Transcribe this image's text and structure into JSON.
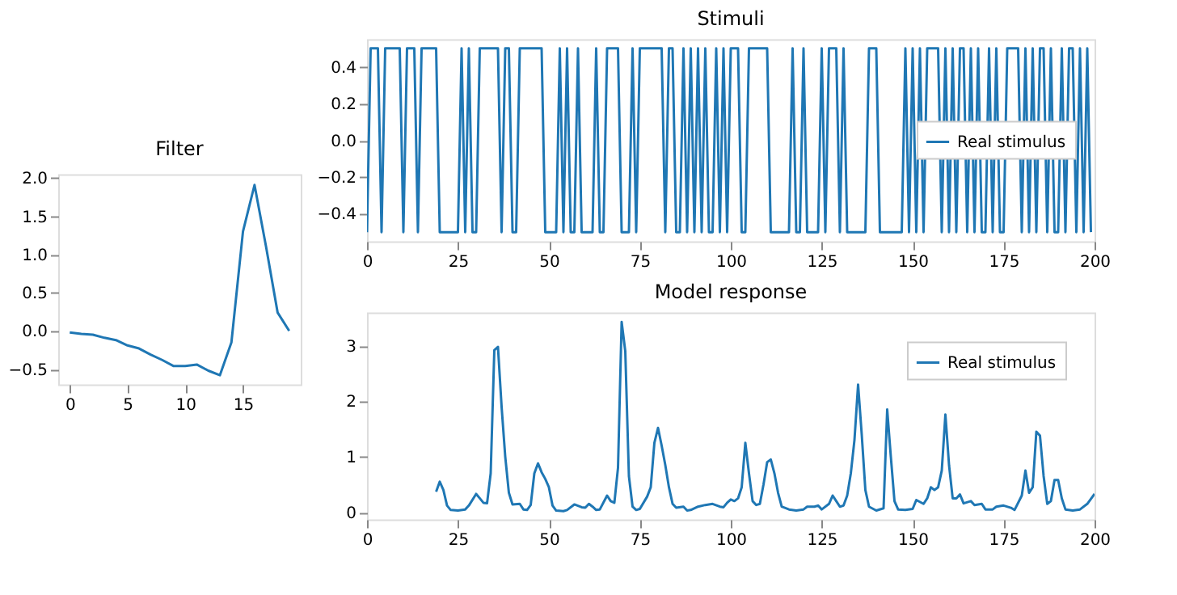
{
  "chart_data": [
    {
      "type": "line",
      "title": "Filter",
      "x": [
        0,
        1,
        2,
        3,
        4,
        5,
        6,
        7,
        8,
        9,
        10,
        11,
        12,
        13,
        14,
        15,
        16,
        17,
        18,
        19
      ],
      "series": [
        {
          "color": "#1f77b4",
          "values": [
            -0.02,
            -0.04,
            -0.05,
            -0.09,
            -0.12,
            -0.19,
            -0.23,
            -0.31,
            -0.38,
            -0.46,
            -0.46,
            -0.44,
            -0.52,
            -0.58,
            -0.15,
            1.3,
            1.91,
            1.1,
            0.24,
            0.0
          ]
        }
      ],
      "xlim": [
        -1,
        20
      ],
      "xticks": [
        0,
        5,
        10,
        15
      ],
      "ylim": [
        -0.7,
        2.05
      ],
      "yticks": [
        -0.5,
        {
          "value": 0,
          "label": "0.0"
        },
        0.5,
        {
          "value": 1,
          "label": "1.0"
        },
        1.5,
        {
          "value": 2,
          "label": "2.0"
        }
      ]
    },
    {
      "type": "line",
      "title": "Stimuli",
      "x": [
        0,
        1,
        2,
        3,
        4,
        5,
        6,
        7,
        8,
        9,
        10,
        11,
        12,
        13,
        14,
        15,
        16,
        17,
        18,
        19,
        20,
        21,
        22,
        23,
        24,
        25,
        26,
        27,
        28,
        29,
        30,
        31,
        32,
        33,
        34,
        35,
        36,
        37,
        38,
        39,
        40,
        41,
        42,
        43,
        44,
        45,
        46,
        47,
        48,
        49,
        50,
        51,
        52,
        53,
        54,
        55,
        56,
        57,
        58,
        59,
        60,
        61,
        62,
        63,
        64,
        65,
        66,
        67,
        68,
        69,
        70,
        71,
        72,
        73,
        74,
        75,
        76,
        77,
        78,
        79,
        80,
        81,
        82,
        83,
        84,
        85,
        86,
        87,
        88,
        89,
        90,
        91,
        92,
        93,
        94,
        95,
        96,
        97,
        98,
        99,
        100,
        101,
        102,
        103,
        104,
        105,
        106,
        107,
        108,
        109,
        110,
        111,
        112,
        113,
        114,
        115,
        116,
        117,
        118,
        119,
        120,
        121,
        122,
        123,
        124,
        125,
        126,
        127,
        128,
        129,
        130,
        131,
        132,
        133,
        134,
        135,
        136,
        137,
        138,
        139,
        140,
        141,
        142,
        143,
        144,
        145,
        146,
        147,
        148,
        149,
        150,
        151,
        152,
        153,
        154,
        155,
        156,
        157,
        158,
        159,
        160,
        161,
        162,
        163,
        164,
        165,
        166,
        167,
        168,
        169,
        170,
        171,
        172,
        173,
        174,
        175,
        176,
        177,
        178,
        179,
        180,
        181,
        182,
        183,
        184,
        185,
        186,
        187,
        188,
        189,
        190,
        191,
        192,
        193,
        194,
        195,
        196,
        197,
        198,
        199
      ],
      "series": [
        {
          "name": "Real stimulus",
          "color": "#1f77b4",
          "values": [
            -0.5,
            0.5,
            0.5,
            0.5,
            -0.5,
            0.5,
            0.5,
            0.5,
            0.5,
            0.5,
            -0.5,
            0.5,
            0.5,
            0.5,
            -0.5,
            0.5,
            0.5,
            0.5,
            0.5,
            0.5,
            -0.5,
            -0.5,
            -0.5,
            -0.5,
            -0.5,
            -0.5,
            0.5,
            -0.5,
            0.5,
            -0.5,
            -0.5,
            0.5,
            0.5,
            0.5,
            0.5,
            0.5,
            0.5,
            -0.5,
            0.5,
            0.5,
            -0.5,
            -0.5,
            0.5,
            0.5,
            0.5,
            0.5,
            0.5,
            0.5,
            0.5,
            -0.5,
            -0.5,
            -0.5,
            -0.5,
            0.5,
            -0.5,
            0.5,
            -0.5,
            -0.5,
            0.5,
            -0.5,
            -0.5,
            -0.5,
            -0.5,
            0.5,
            -0.5,
            -0.5,
            0.5,
            0.5,
            0.5,
            0.5,
            -0.5,
            -0.5,
            -0.5,
            0.5,
            -0.5,
            0.5,
            0.5,
            0.5,
            0.5,
            0.5,
            0.5,
            0.5,
            -0.5,
            0.5,
            0.5,
            -0.5,
            -0.5,
            0.5,
            -0.5,
            0.5,
            -0.5,
            0.5,
            -0.5,
            0.5,
            -0.5,
            -0.5,
            0.5,
            -0.5,
            0.5,
            -0.5,
            0.5,
            0.5,
            0.5,
            -0.5,
            -0.5,
            0.5,
            0.5,
            0.5,
            0.5,
            0.5,
            0.5,
            -0.5,
            -0.5,
            -0.5,
            -0.5,
            -0.5,
            -0.5,
            0.5,
            -0.5,
            -0.5,
            0.5,
            -0.5,
            -0.5,
            -0.5,
            -0.5,
            0.5,
            -0.5,
            0.5,
            0.5,
            0.5,
            -0.5,
            0.5,
            -0.5,
            -0.5,
            -0.5,
            -0.5,
            -0.5,
            -0.5,
            0.5,
            0.5,
            0.5,
            -0.5,
            -0.5,
            -0.5,
            -0.5,
            -0.5,
            -0.5,
            -0.5,
            0.5,
            -0.5,
            0.5,
            -0.5,
            0.5,
            -0.5,
            0.5,
            0.5,
            0.5,
            0.5,
            -0.5,
            0.5,
            -0.5,
            0.5,
            -0.5,
            0.5,
            0.5,
            -0.5,
            0.5,
            -0.5,
            0.5,
            -0.5,
            -0.5,
            0.5,
            -0.5,
            0.5,
            -0.5,
            -0.5,
            0.5,
            0.5,
            0.5,
            0.5,
            -0.5,
            0.5,
            -0.5,
            0.5,
            -0.5,
            0.5,
            0.5,
            -0.5,
            0.5,
            -0.5,
            -0.5,
            0.5,
            -0.5,
            0.5,
            0.5,
            -0.5,
            0.5,
            -0.5,
            0.5,
            -0.5
          ]
        }
      ],
      "xlim": [
        0,
        200
      ],
      "xticks": [
        0,
        25,
        50,
        75,
        100,
        125,
        150,
        175,
        200
      ],
      "ylim": [
        -0.55,
        0.55
      ],
      "yticks": [
        -0.4,
        -0.2,
        {
          "value": 0,
          "label": "0.0"
        },
        0.2,
        0.4
      ],
      "legend": "right"
    },
    {
      "type": "line",
      "title": "Model response",
      "x": [
        19,
        20,
        21,
        22,
        23,
        25,
        27,
        28,
        30,
        31,
        32,
        33,
        34,
        35,
        36,
        37,
        38,
        39,
        40,
        42,
        43,
        44,
        45,
        46,
        47,
        48,
        49,
        50,
        51,
        52,
        54,
        55,
        57,
        59,
        60,
        61,
        62,
        63,
        64,
        66,
        67,
        68,
        69,
        70,
        71,
        72,
        73,
        74,
        75,
        77,
        78,
        79,
        80,
        81,
        82,
        83,
        84,
        85,
        87,
        88,
        89,
        91,
        93,
        95,
        97,
        98,
        99,
        100,
        101,
        102,
        103,
        104,
        105,
        106,
        107,
        108,
        109,
        110,
        111,
        112,
        113,
        114,
        116,
        118,
        120,
        121,
        123,
        124,
        125,
        127,
        128,
        129,
        130,
        131,
        132,
        133,
        134,
        135,
        136,
        137,
        138,
        140,
        142,
        143,
        144,
        145,
        146,
        148,
        150,
        151,
        153,
        154,
        155,
        156,
        157,
        158,
        159,
        160,
        161,
        162,
        163,
        164,
        166,
        167,
        169,
        170,
        172,
        173,
        175,
        177,
        178,
        180,
        181,
        182,
        183,
        184,
        185,
        186,
        187,
        188,
        189,
        190,
        191,
        192,
        194,
        196,
        198,
        200
      ],
      "series": [
        {
          "name": "Real stimulus",
          "color": "#1f77b4",
          "values": [
            0.37,
            0.55,
            0.4,
            0.12,
            0.04,
            0.03,
            0.05,
            0.12,
            0.33,
            0.25,
            0.17,
            0.16,
            0.7,
            2.92,
            2.98,
            1.9,
            1.0,
            0.35,
            0.14,
            0.15,
            0.05,
            0.04,
            0.13,
            0.7,
            0.88,
            0.72,
            0.6,
            0.45,
            0.12,
            0.03,
            0.02,
            0.04,
            0.14,
            0.09,
            0.08,
            0.15,
            0.1,
            0.04,
            0.05,
            0.3,
            0.2,
            0.17,
            0.8,
            3.43,
            2.9,
            0.65,
            0.1,
            0.04,
            0.06,
            0.28,
            0.45,
            1.25,
            1.52,
            1.2,
            0.85,
            0.45,
            0.15,
            0.08,
            0.1,
            0.03,
            0.04,
            0.1,
            0.13,
            0.15,
            0.1,
            0.09,
            0.17,
            0.23,
            0.2,
            0.25,
            0.45,
            1.25,
            0.7,
            0.2,
            0.13,
            0.15,
            0.5,
            0.9,
            0.95,
            0.7,
            0.35,
            0.1,
            0.05,
            0.03,
            0.05,
            0.1,
            0.1,
            0.12,
            0.05,
            0.15,
            0.3,
            0.2,
            0.1,
            0.12,
            0.3,
            0.7,
            1.3,
            2.3,
            1.4,
            0.4,
            0.1,
            0.03,
            0.07,
            1.85,
            1.0,
            0.2,
            0.05,
            0.04,
            0.06,
            0.22,
            0.15,
            0.25,
            0.45,
            0.4,
            0.45,
            0.75,
            1.76,
            0.85,
            0.25,
            0.25,
            0.32,
            0.16,
            0.2,
            0.13,
            0.15,
            0.05,
            0.05,
            0.1,
            0.12,
            0.08,
            0.04,
            0.3,
            0.75,
            0.35,
            0.45,
            1.45,
            1.38,
            0.65,
            0.15,
            0.2,
            0.58,
            0.58,
            0.25,
            0.05,
            0.03,
            0.05,
            0.15,
            0.33
          ]
        }
      ],
      "xlim": [
        0,
        200
      ],
      "xticks": [
        0,
        25,
        50,
        75,
        100,
        125,
        150,
        175,
        200
      ],
      "ylim": [
        -0.13,
        3.6
      ],
      "yticks": [
        0,
        1,
        2,
        3
      ],
      "legend": "top right"
    }
  ]
}
